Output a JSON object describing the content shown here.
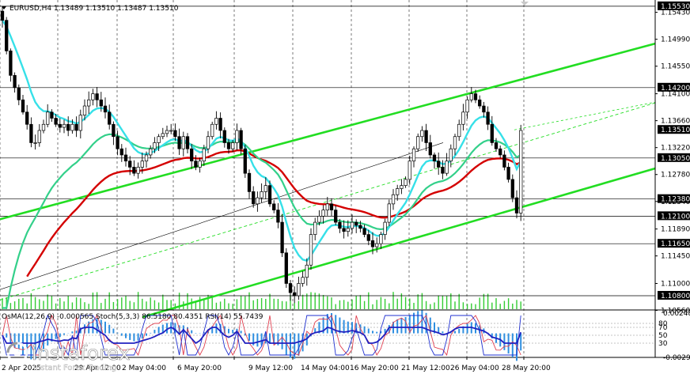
{
  "symbol_header": {
    "text": "EURUSD,H4  1.13489 1.13510 1.13487 1.13510"
  },
  "indicator_header": {
    "text": "OsMA(12,26,9) -0.000565  Stoch(5,3,3) 86.5180 80.4351  RSI(14) 55.7439"
  },
  "watermark": {
    "brand": "instaforex",
    "tagline": "Instant Forex Trading"
  },
  "colors": {
    "candle": "#000000",
    "ma_fast": "#36e0e8",
    "ma_mid": "#33d08a",
    "ma_slow": "#d40000",
    "channel": "#22dd22",
    "level": "#000000",
    "volume": "#33cc33",
    "osma": "#2f8fe0",
    "stoch_main": "#2030d0",
    "stoch_signal": "#e04050",
    "rsi": "#2020c0",
    "tag_bg": "#000000",
    "tag_text": "#ffffff"
  },
  "chart_data": [
    {
      "type": "candlestick",
      "symbol": "EURUSD",
      "timeframe": "H4",
      "ylim": [
        1.1058,
        1.1558
      ],
      "y_ticks": [
        1.1543,
        1.1499,
        1.1455,
        1.141,
        1.1366,
        1.1322,
        1.1278,
        1.1234,
        1.1189,
        1.1145,
        1.11,
        1.1056
      ],
      "x_ticks": [
        "2 Apr 2025",
        "29 Apr 12:00",
        "2 May 04:00",
        "6 May 20:00",
        "9 May 12:00",
        "14 May 04:00",
        "16 May 20:00",
        "21 May 12:00",
        "26 May 04:00",
        "28 May 20:00"
      ],
      "key_levels": [
        {
          "value": 1.1553,
          "label": "1.15530"
        },
        {
          "value": 1.142,
          "label": "1.14200"
        },
        {
          "value": 1.1305,
          "label": "1.13050"
        },
        {
          "value": 1.1238,
          "label": "1.12380"
        },
        {
          "value": 1.121,
          "label": "1.12100"
        },
        {
          "value": 1.1165,
          "label": "1.11650"
        },
        {
          "value": 1.108,
          "label": "1.10800"
        }
      ],
      "current_price": {
        "value": 1.1351,
        "label": "1.13510"
      },
      "closes": [
        1.153,
        1.148,
        1.144,
        1.142,
        1.14,
        1.138,
        1.136,
        1.133,
        1.133,
        1.135,
        1.136,
        1.138,
        1.137,
        1.136,
        1.1355,
        1.136,
        1.135,
        1.136,
        1.135,
        1.1375,
        1.139,
        1.14,
        1.141,
        1.14,
        1.139,
        1.138,
        1.136,
        1.134,
        1.132,
        1.131,
        1.13,
        1.129,
        1.128,
        1.129,
        1.13,
        1.131,
        1.132,
        1.133,
        1.134,
        1.1345,
        1.135,
        1.135,
        1.134,
        1.132,
        1.134,
        1.132,
        1.13,
        1.129,
        1.13,
        1.132,
        1.134,
        1.136,
        1.137,
        1.135,
        1.133,
        1.132,
        1.133,
        1.135,
        1.132,
        1.128,
        1.125,
        1.123,
        1.124,
        1.125,
        1.126,
        1.123,
        1.122,
        1.12,
        1.115,
        1.11,
        1.1085,
        1.108,
        1.11,
        1.111,
        1.113,
        1.118,
        1.12,
        1.121,
        1.122,
        1.123,
        1.122,
        1.12,
        1.119,
        1.1185,
        1.119,
        1.12,
        1.1195,
        1.119,
        1.118,
        1.117,
        1.116,
        1.1165,
        1.118,
        1.12,
        1.123,
        1.1245,
        1.1255,
        1.126,
        1.127,
        1.13,
        1.132,
        1.134,
        1.135,
        1.133,
        1.131,
        1.13,
        1.129,
        1.128,
        1.13,
        1.132,
        1.134,
        1.136,
        1.138,
        1.14,
        1.141,
        1.14,
        1.139,
        1.138,
        1.136,
        1.133,
        1.132,
        1.131,
        1.129,
        1.127,
        1.124,
        1.1215,
        1.135
      ]
    },
    {
      "type": "oscillator",
      "indicators": [
        "OsMA(12,26,9)",
        "Stoch(5,3,3)",
        "RSI(14)"
      ],
      "ylim": [
        -0.00295,
        0.00248
      ],
      "y_ticks": [
        0.00248,
        -0.00295
      ],
      "y_tick_labels": [
        "0.00248",
        "-0.00295"
      ],
      "stoch_levels": [
        80,
        70,
        50,
        30
      ],
      "stoch_level_labels": [
        "80",
        "70",
        "50",
        "30"
      ],
      "current": {
        "osma": -0.000565,
        "stoch_main": 86.518,
        "stoch_signal": 80.4351,
        "rsi": 55.7439
      }
    }
  ]
}
